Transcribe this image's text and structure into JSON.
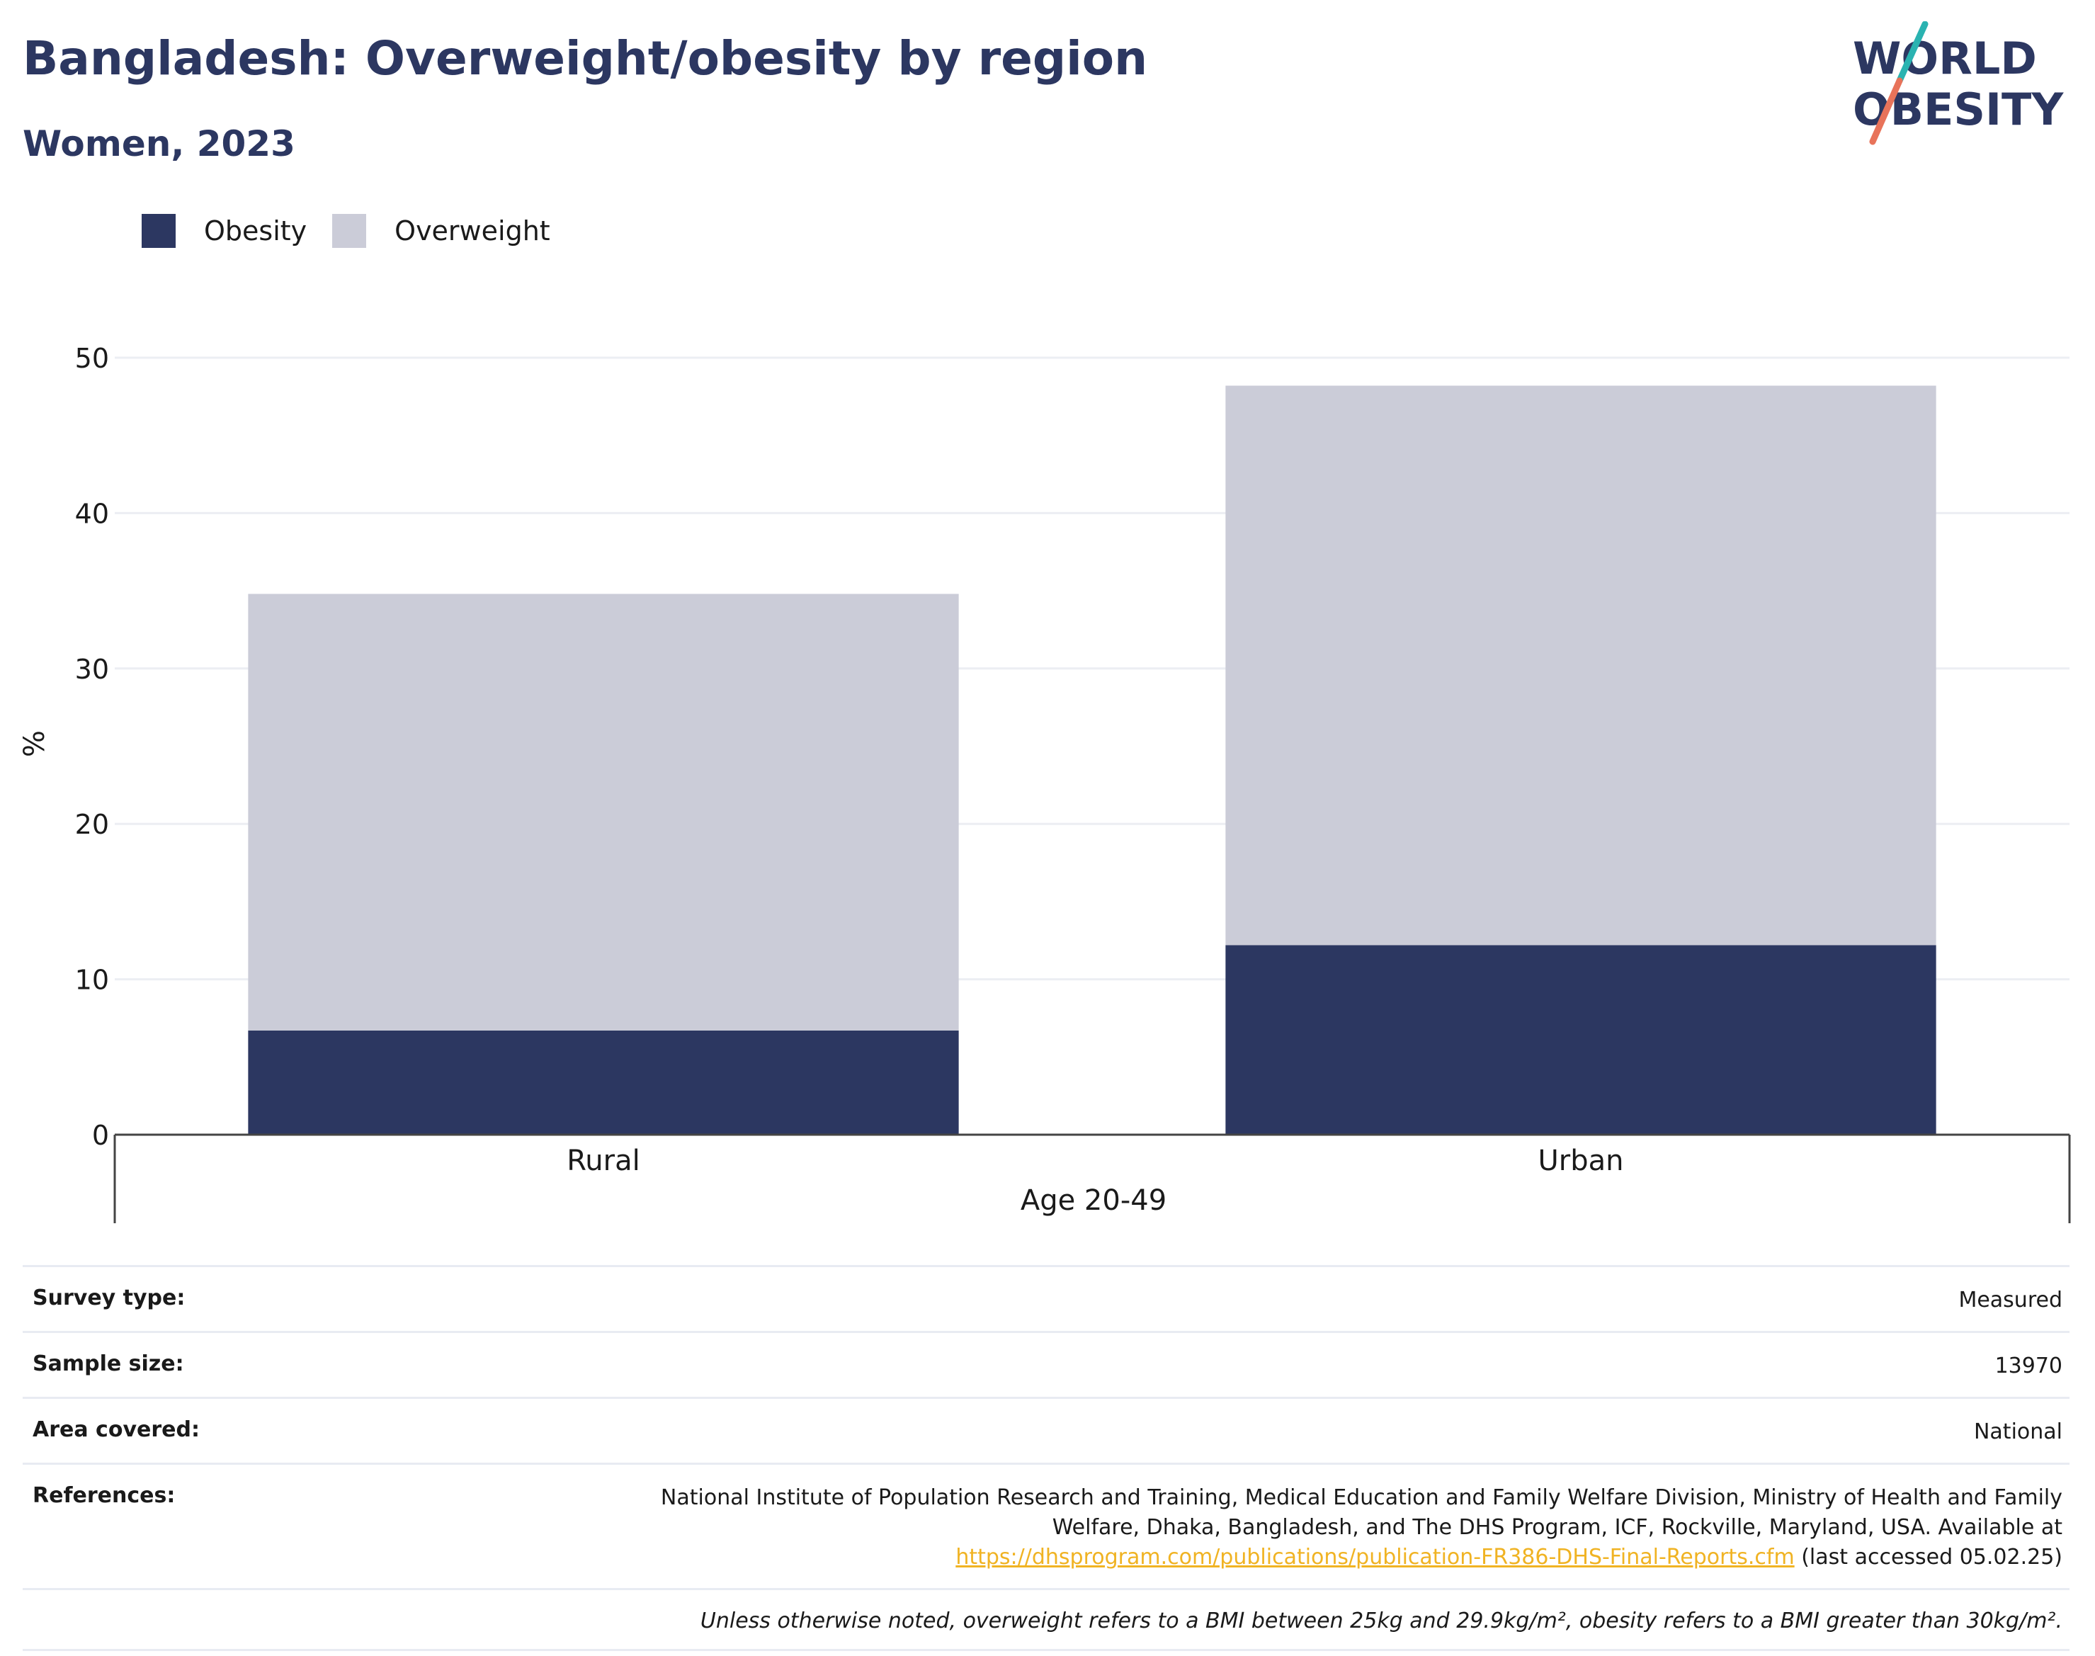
{
  "header": {
    "title": "Bangladesh: Overweight/obesity by region",
    "subtitle": "Women, 2023"
  },
  "logo": {
    "line1": "WORLD",
    "line2": "OBESITY",
    "colors": {
      "text": "#2c3761",
      "teal": "#2ab3b1",
      "coral": "#e8735a"
    }
  },
  "legend": [
    {
      "label": "Obesity",
      "color": "#2c3761"
    },
    {
      "label": "Overweight",
      "color": "#cbccd8"
    }
  ],
  "chart_data": {
    "type": "bar",
    "stacked": true,
    "categories": [
      "Rural",
      "Urban"
    ],
    "series": [
      {
        "name": "Obesity",
        "color": "#2c3761",
        "values": [
          6.7,
          12.2
        ]
      },
      {
        "name": "Overweight",
        "color": "#cbccd8",
        "values": [
          28.1,
          36.0
        ]
      }
    ],
    "ylabel": "%",
    "xlabel": "Age 20-49",
    "ylim": [
      0,
      50
    ],
    "yticks": [
      0,
      10,
      20,
      30,
      40,
      50
    ],
    "grid": true,
    "legend_position": "top-left"
  },
  "info": {
    "rows": [
      {
        "label": "Survey type:",
        "value": "Measured"
      },
      {
        "label": "Sample size:",
        "value": "13970"
      },
      {
        "label": "Area covered:",
        "value": "National"
      }
    ],
    "references": {
      "label": "References:",
      "text": "National Institute of Population Research and Training, Medical Education and Family Welfare Division, Ministry of Health and Family Welfare, Dhaka, Bangladesh, and The DHS Program, ICF, Rockville, Maryland, USA. Available at",
      "link": "https://dhsprogram.com/publications/publication-FR386-DHS-Final-Reports.cfm",
      "suffix": "(last accessed 05.02.25)"
    },
    "note": "Unless otherwise noted, overweight refers to a BMI between 25kg and 29.9kg/m², obesity refers to a BMI greater than 30kg/m²."
  }
}
